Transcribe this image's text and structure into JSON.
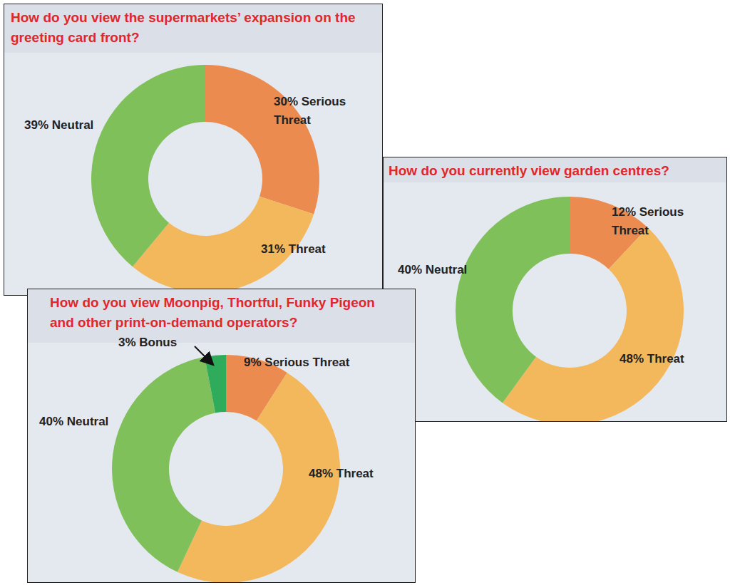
{
  "chart_data": [
    {
      "type": "donut",
      "title": "How do you view the supermarkets’ expansion on the greeting card front?",
      "categories": [
        "Serious Threat",
        "Threat",
        "Neutral"
      ],
      "values": [
        30,
        31,
        39
      ],
      "value_labels": [
        "30%",
        "31%",
        "39%"
      ],
      "colors": [
        "#ec8b4f",
        "#f3b85c",
        "#80c05b"
      ],
      "data_labels": true
    },
    {
      "type": "donut",
      "title": "How do you currently view garden centres?",
      "categories": [
        "Serious Threat",
        "Threat",
        "Neutral"
      ],
      "values": [
        12,
        48,
        40
      ],
      "value_labels": [
        "12%",
        "48%",
        "40%"
      ],
      "colors": [
        "#ec8b4f",
        "#f3b85c",
        "#80c05b"
      ],
      "data_labels": true
    },
    {
      "type": "donut",
      "title": "How do you view Moonpig, Thortful, Funky Pigeon and other print-on-demand operators?",
      "categories": [
        "Serious Threat",
        "Threat",
        "Neutral",
        "Bonus"
      ],
      "values": [
        9,
        48,
        40,
        3
      ],
      "value_labels": [
        "9%",
        "48%",
        "40%",
        "3%"
      ],
      "colors": [
        "#ec8b4f",
        "#f3b85c",
        "#80c05b",
        "#2eab5b"
      ],
      "data_labels": true
    }
  ]
}
